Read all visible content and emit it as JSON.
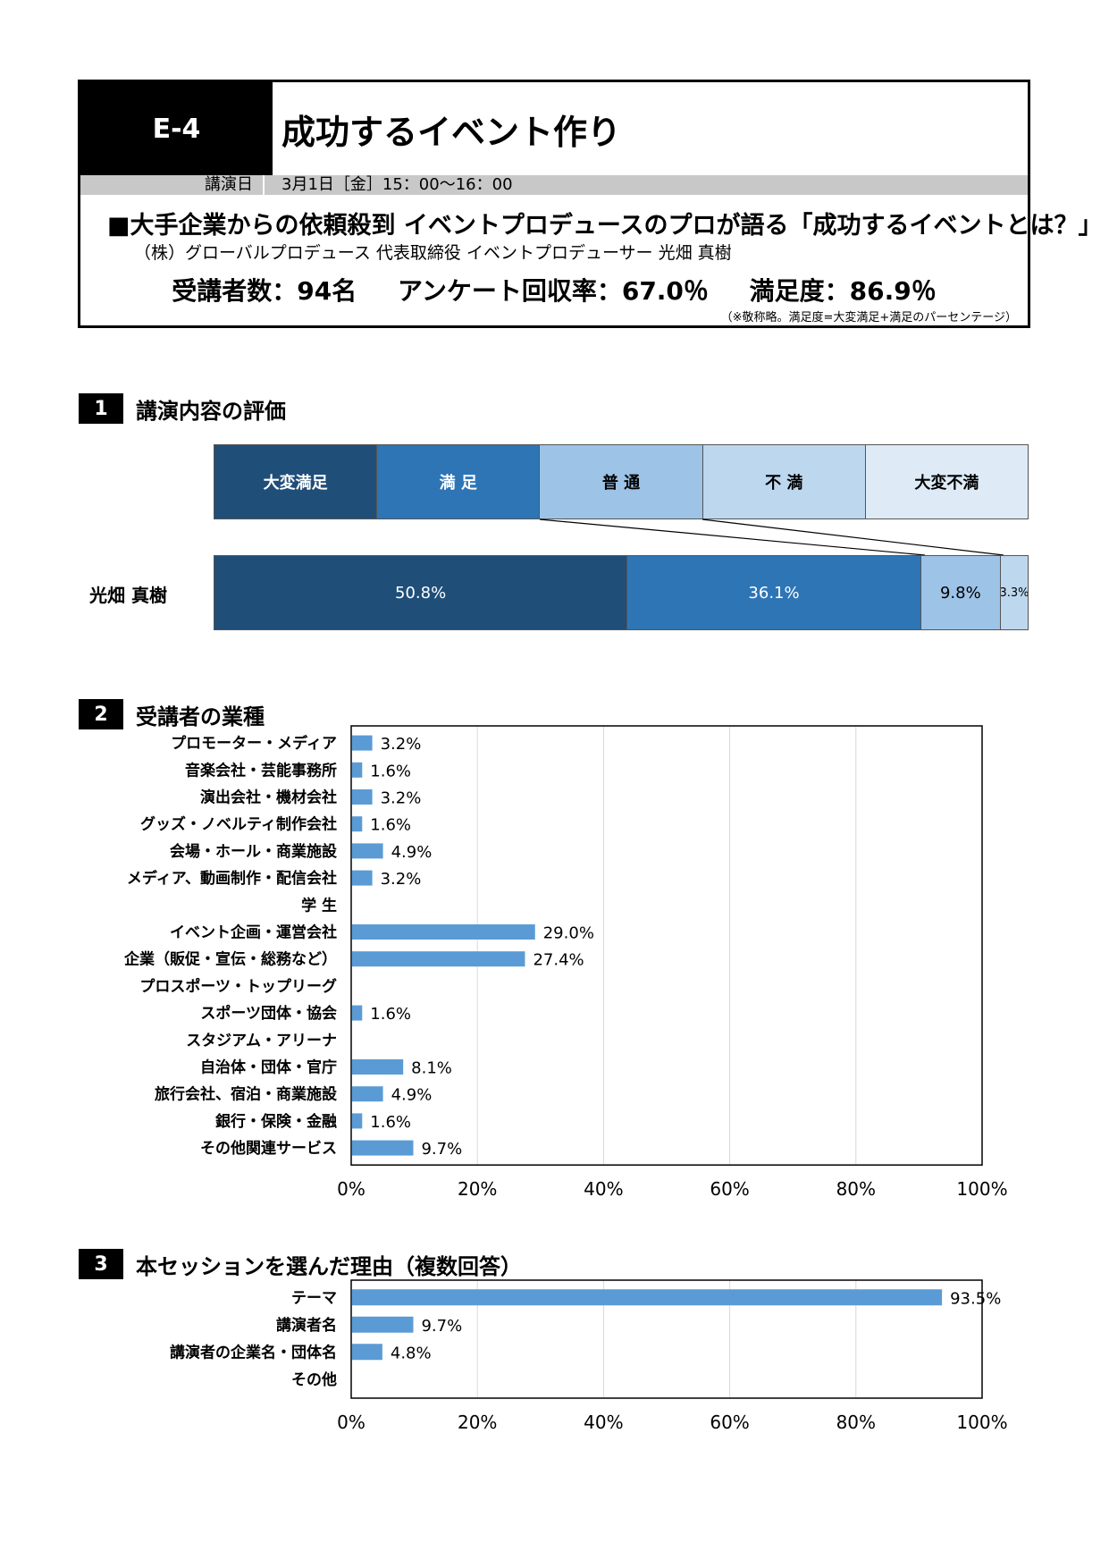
{
  "header": {
    "code": "E-4",
    "title": "成功するイベント作り",
    "date_label": "講演日",
    "date_value": "3月1日［金］15：00～16：00",
    "session_title": "■大手企業からの依頼殺到 イベントプロデュースのプロが語る「成功するイベントとは？」",
    "speaker": "（株）グローバルプロデュース 代表取締役 イベントプロデューサー 光畑 真樹",
    "attendees": "受講者数：94名",
    "response_rate": "アンケート回収率：67.0％",
    "satisfaction": "満足度：86.9％",
    "note": "（※敬称略。満足度=大変満足+満足のパーセンテージ）"
  },
  "section1": {
    "number": "1",
    "title": "講演内容の評価",
    "legend": [
      "大変満足",
      "満 足",
      "普 通",
      "不 満",
      "大変不満"
    ],
    "row_label": "光畑 真樹",
    "colors": [
      "#1f4e79",
      "#2e75b6",
      "#9dc3e6",
      "#bdd7ee",
      "#deebf7"
    ]
  },
  "section2": {
    "number": "2",
    "title": "受講者の業種"
  },
  "section3": {
    "number": "3",
    "title": "本セッションを選んだ理由（複数回答）"
  },
  "chart_data": [
    {
      "type": "bar",
      "orientation": "horizontal-stacked",
      "categories": [
        "光畑 真樹"
      ],
      "series": [
        {
          "name": "大変満足",
          "values": [
            50.8
          ],
          "label": "50.8%"
        },
        {
          "name": "満 足",
          "values": [
            36.1
          ],
          "label": "36.1%"
        },
        {
          "name": "普 通",
          "values": [
            9.8
          ],
          "label": "9.8%"
        },
        {
          "name": "不 満",
          "values": [
            3.3
          ],
          "label": "3.3%"
        },
        {
          "name": "大変不満",
          "values": [
            0
          ],
          "label": ""
        }
      ]
    },
    {
      "type": "bar",
      "orientation": "horizontal",
      "categories": [
        "プロモーター・メディア",
        "音楽会社・芸能事務所",
        "演出会社・機材会社",
        "グッズ・ノベルティ制作会社",
        "会場・ホール・商業施設",
        "メディア、動画制作・配信会社",
        "学 生",
        "イベント企画・運営会社",
        "企業（販促・宣伝・総務など）",
        "プロスポーツ・トップリーグ",
        "スポーツ団体・協会",
        "スタジアム・アリーナ",
        "自治体・団体・官庁",
        "旅行会社、宿泊・商業施設",
        "銀行・保険・金融",
        "その他関連サービス"
      ],
      "values": [
        3.2,
        1.6,
        3.2,
        1.6,
        4.9,
        3.2,
        0,
        29.0,
        27.4,
        0,
        1.6,
        0,
        8.1,
        4.9,
        1.6,
        9.7
      ],
      "labels": [
        "3.2%",
        "1.6%",
        "3.2%",
        "1.6%",
        "4.9%",
        "3.2%",
        "",
        "29.0%",
        "27.4%",
        "",
        "1.6%",
        "",
        "8.1%",
        "4.9%",
        "1.6%",
        "9.7%"
      ],
      "xlim": [
        0,
        100
      ],
      "xticks": [
        "0%",
        "20%",
        "40%",
        "60%",
        "80%",
        "100%"
      ],
      "grid": true,
      "color": "#5b9bd5"
    },
    {
      "type": "bar",
      "orientation": "horizontal",
      "categories": [
        "テーマ",
        "講演者名",
        "講演者の企業名・団体名",
        "その他"
      ],
      "values": [
        93.5,
        9.7,
        4.8,
        0
      ],
      "labels": [
        "93.5%",
        "9.7%",
        "4.8%",
        ""
      ],
      "xlim": [
        0,
        100
      ],
      "xticks": [
        "0%",
        "20%",
        "40%",
        "60%",
        "80%",
        "100%"
      ],
      "grid": true,
      "color": "#5b9bd5"
    }
  ]
}
